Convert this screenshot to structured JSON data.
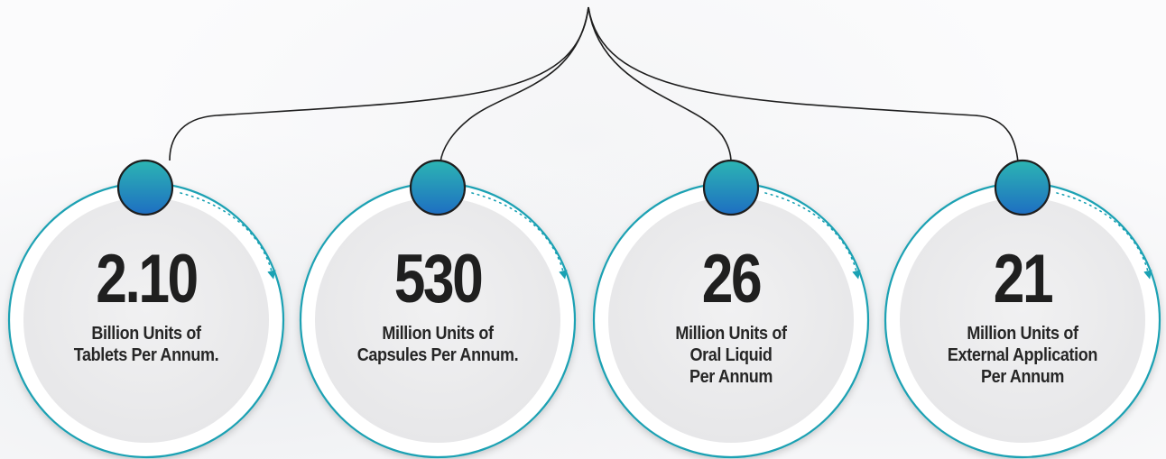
{
  "colors": {
    "ring": "#1aa1b3",
    "node_top": "#2bb3b6",
    "node_bottom": "#1f6fc1",
    "disc": "#eeeeef",
    "line": "#1e1e1e"
  },
  "stats": [
    {
      "value": "2.10",
      "caption_lines": [
        "Billion Units of",
        "Tablets Per Annum."
      ]
    },
    {
      "value": "530",
      "caption_lines": [
        "Million Units of",
        "Capsules Per Annum."
      ]
    },
    {
      "value": "26",
      "caption_lines": [
        "Million Units of",
        "Oral Liquid",
        "Per Annum"
      ]
    },
    {
      "value": "21",
      "caption_lines": [
        "Million Units of",
        "External Application",
        "Per Annum"
      ]
    }
  ]
}
